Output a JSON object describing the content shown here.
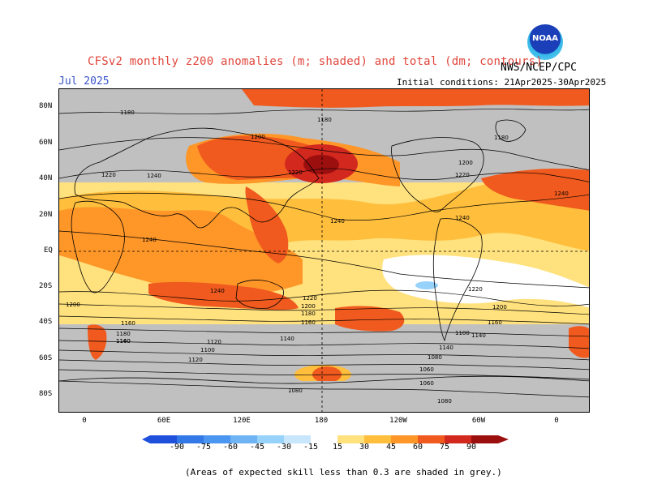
{
  "header": {
    "title": "CFSv2 monthly z200 anomalies (m; shaded) and total (dm; contours)",
    "agency": "NWS/NCEP/CPC",
    "month": "Jul 2025",
    "initial_conditions": "Initial conditions: 21Apr2025-30Apr2025",
    "logo_text": "NOAA"
  },
  "axes": {
    "latitude_labels": [
      "80N",
      "60N",
      "40N",
      "20N",
      "EQ",
      "20S",
      "40S",
      "60S",
      "80S"
    ],
    "longitude_labels": [
      "0",
      "60E",
      "120E",
      "180",
      "120W",
      "60W",
      "0"
    ]
  },
  "colorbar": {
    "labels": [
      "-90",
      "-75",
      "-60",
      "-45",
      "-30",
      "-15",
      "15",
      "30",
      "45",
      "60",
      "75",
      "90"
    ],
    "colors": [
      "#1e50dc",
      "#3278e6",
      "#4b96f0",
      "#6eb4f5",
      "#96d2fa",
      "#c8e6fc",
      "#ffffff",
      "#ffe17d",
      "#ffbe3c",
      "#ff9628",
      "#f05a1e",
      "#d2281e",
      "#9b0f0f"
    ]
  },
  "contours": {
    "labels": [
      "1180",
      "1180",
      "1180",
      "1200",
      "1220",
      "1240",
      "1220",
      "1200",
      "1240",
      "1240",
      "1240",
      "1240",
      "1220",
      "1240",
      "1200",
      "1220",
      "1200",
      "1180",
      "1160",
      "1140",
      "1160",
      "1180",
      "1160",
      "1140",
      "1120",
      "1100",
      "1120",
      "1140",
      "1080",
      "1060",
      "1060",
      "1080",
      "1080",
      "1100",
      "1160",
      "1140",
      "1200",
      "1220"
    ]
  },
  "footer": {
    "note": "(Areas of expected skill less than 0.3 are shaded in grey.)"
  }
}
